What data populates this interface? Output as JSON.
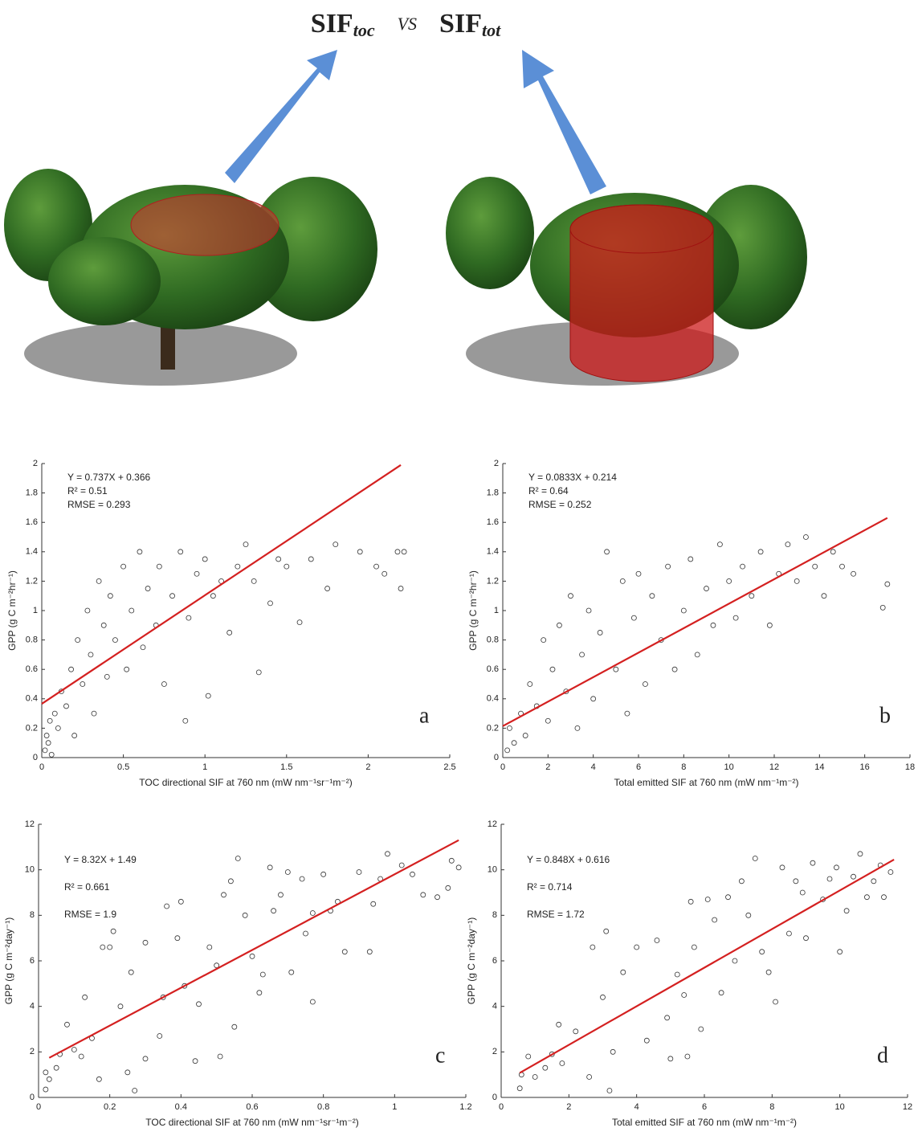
{
  "illustration": {
    "title": {
      "left": "SIF",
      "left_sub": "toc",
      "mid": "VS",
      "right": "SIF",
      "right_sub": "tot"
    }
  },
  "chart_data": [
    {
      "type": "scatter",
      "panel_label": "a",
      "x_label": "TOC directional SIF at 760 nm (mW nm⁻¹sr⁻¹m⁻²)",
      "y_label": "GPP (g C m⁻²hr⁻¹)",
      "annotations": [
        "Y = 0.737X + 0.366",
        "R² = 0.51",
        "RMSE = 0.293"
      ],
      "xlim": [
        0,
        2.5
      ],
      "xticks": [
        0,
        0.5,
        1,
        1.5,
        2,
        2.5
      ],
      "ylim": [
        0,
        2
      ],
      "yticks": [
        0,
        0.2,
        0.4,
        0.6,
        0.8,
        1,
        1.2,
        1.4,
        1.6,
        1.8,
        2
      ],
      "color": "#333333",
      "fit": {
        "color": "#d42020",
        "x": [
          0,
          2.2
        ],
        "y": [
          0.366,
          1.99
        ]
      },
      "x": [
        0.02,
        0.03,
        0.05,
        0.04,
        0.08,
        0.06,
        0.1,
        0.12,
        0.15,
        0.18,
        0.2,
        0.22,
        0.25,
        0.28,
        0.3,
        0.32,
        0.35,
        0.38,
        0.4,
        0.42,
        0.45,
        0.5,
        0.52,
        0.55,
        0.6,
        0.62,
        0.65,
        0.7,
        0.72,
        0.75,
        0.8,
        0.85,
        0.88,
        0.9,
        0.95,
        1.0,
        1.02,
        1.05,
        1.1,
        1.15,
        1.2,
        1.25,
        1.3,
        1.33,
        1.4,
        1.45,
        1.5,
        1.58,
        1.65,
        1.75,
        1.8,
        1.95,
        2.05,
        2.1,
        2.18,
        2.2,
        2.22
      ],
      "y": [
        0.05,
        0.15,
        0.25,
        0.1,
        0.3,
        0.02,
        0.2,
        0.45,
        0.35,
        0.6,
        0.15,
        0.8,
        0.5,
        1.0,
        0.7,
        0.3,
        1.2,
        0.9,
        0.55,
        1.1,
        0.8,
        1.3,
        0.6,
        1.0,
        1.4,
        0.75,
        1.15,
        0.9,
        1.3,
        0.5,
        1.1,
        1.4,
        0.25,
        0.95,
        1.25,
        1.35,
        0.42,
        1.1,
        1.2,
        0.85,
        1.3,
        1.45,
        1.2,
        0.58,
        1.05,
        1.35,
        1.3,
        0.92,
        1.35,
        1.15,
        1.45,
        1.4,
        1.3,
        1.25,
        1.4,
        1.15,
        1.4
      ]
    },
    {
      "type": "scatter",
      "panel_label": "b",
      "x_label": "Total emitted SIF at 760 nm (mW nm⁻¹m⁻²)",
      "y_label": "GPP (g C m⁻²hr⁻¹)",
      "annotations": [
        "Y = 0.0833X + 0.214",
        "R² = 0.64",
        "RMSE = 0.252"
      ],
      "xlim": [
        0,
        18
      ],
      "xticks": [
        0,
        2,
        4,
        6,
        8,
        10,
        12,
        14,
        16,
        18
      ],
      "ylim": [
        0,
        2
      ],
      "yticks": [
        0,
        0.2,
        0.4,
        0.6,
        0.8,
        1,
        1.2,
        1.4,
        1.6,
        1.8,
        2
      ],
      "color": "#333333",
      "fit": {
        "color": "#d42020",
        "x": [
          0,
          17
        ],
        "y": [
          0.214,
          1.63
        ]
      },
      "x": [
        0.2,
        0.3,
        0.5,
        0.8,
        1,
        1.2,
        1.5,
        1.8,
        2,
        2.2,
        2.5,
        2.8,
        3,
        3.3,
        3.5,
        3.8,
        4,
        4.3,
        4.6,
        5,
        5.3,
        5.5,
        5.8,
        6,
        6.3,
        6.6,
        7,
        7.3,
        7.6,
        8,
        8.3,
        8.6,
        9,
        9.3,
        9.6,
        10,
        10.3,
        10.6,
        11,
        11.4,
        11.8,
        12.2,
        12.6,
        13,
        13.4,
        13.8,
        14.2,
        14.6,
        15,
        15.5,
        16.8,
        17
      ],
      "y": [
        0.05,
        0.2,
        0.1,
        0.3,
        0.15,
        0.5,
        0.35,
        0.8,
        0.25,
        0.6,
        0.9,
        0.45,
        1.1,
        0.2,
        0.7,
        1.0,
        0.4,
        0.85,
        1.4,
        0.6,
        1.2,
        0.3,
        0.95,
        1.25,
        0.5,
        1.1,
        0.8,
        1.3,
        0.6,
        1.0,
        1.35,
        0.7,
        1.15,
        0.9,
        1.45,
        1.2,
        0.95,
        1.3,
        1.1,
        1.4,
        0.9,
        1.25,
        1.45,
        1.2,
        1.5,
        1.3,
        1.1,
        1.4,
        1.3,
        1.25,
        1.02,
        1.18
      ]
    },
    {
      "type": "scatter",
      "panel_label": "c",
      "x_label": "TOC directional SIF at 760 nm (mW nm⁻¹sr⁻¹m⁻²)",
      "y_label": "GPP (g C m⁻²day⁻¹)",
      "annotations": [
        "Y = 8.32X + 1.49",
        "R² = 0.661",
        "RMSE = 1.9"
      ],
      "xlim": [
        0,
        1.2
      ],
      "xticks": [
        0,
        0.2,
        0.4,
        0.6,
        0.8,
        1,
        1.2
      ],
      "ylim": [
        0,
        12
      ],
      "yticks": [
        0,
        2,
        4,
        6,
        8,
        10,
        12
      ],
      "color": "#333333",
      "fit": {
        "color": "#d42020",
        "x": [
          0.03,
          1.18
        ],
        "y": [
          1.74,
          11.3
        ]
      },
      "x": [
        0.02,
        0.02,
        0.03,
        0.05,
        0.06,
        0.08,
        0.1,
        0.12,
        0.13,
        0.15,
        0.17,
        0.18,
        0.2,
        0.21,
        0.23,
        0.25,
        0.26,
        0.27,
        0.3,
        0.3,
        0.34,
        0.35,
        0.36,
        0.39,
        0.4,
        0.41,
        0.44,
        0.45,
        0.48,
        0.5,
        0.51,
        0.52,
        0.54,
        0.55,
        0.56,
        0.58,
        0.6,
        0.62,
        0.63,
        0.65,
        0.66,
        0.68,
        0.7,
        0.71,
        0.74,
        0.75,
        0.77,
        0.77,
        0.8,
        0.82,
        0.84,
        0.86,
        0.9,
        0.93,
        0.94,
        0.96,
        0.98,
        1.02,
        1.05,
        1.08,
        1.12,
        1.15,
        1.16,
        1.18
      ],
      "y": [
        0.35,
        1.1,
        0.8,
        1.3,
        1.9,
        3.2,
        2.1,
        1.8,
        4.4,
        2.6,
        0.8,
        6.6,
        6.6,
        7.3,
        4.0,
        1.1,
        5.5,
        0.3,
        6.8,
        1.7,
        2.7,
        4.4,
        8.4,
        7.0,
        8.6,
        4.9,
        1.6,
        4.1,
        6.6,
        5.8,
        1.8,
        8.9,
        9.5,
        3.1,
        10.5,
        8.0,
        6.2,
        4.6,
        5.4,
        10.1,
        8.2,
        8.9,
        9.9,
        5.5,
        9.6,
        7.2,
        8.1,
        4.2,
        9.8,
        8.2,
        8.6,
        6.4,
        9.9,
        6.4,
        8.5,
        9.6,
        10.7,
        10.2,
        9.8,
        8.9,
        8.8,
        9.2,
        10.4,
        10.1
      ]
    },
    {
      "type": "scatter",
      "panel_label": "d",
      "x_label": "Total emitted SIF at 760 nm (mW nm⁻¹m⁻²)",
      "y_label": "GPP (g C m⁻²day⁻¹)",
      "annotations": [
        "Y = 0.848X + 0.616",
        "R² = 0.714",
        "RMSE = 1.72"
      ],
      "xlim": [
        0,
        12
      ],
      "xticks": [
        0,
        2,
        4,
        6,
        8,
        10,
        12
      ],
      "ylim": [
        0,
        12
      ],
      "yticks": [
        0,
        2,
        4,
        6,
        8,
        10,
        12
      ],
      "color": "#333333",
      "fit": {
        "color": "#d42020",
        "x": [
          0.55,
          11.6
        ],
        "y": [
          1.08,
          10.45
        ]
      },
      "x": [
        0.55,
        0.6,
        0.8,
        1.0,
        1.3,
        1.5,
        1.7,
        1.8,
        2.2,
        2.6,
        2.7,
        3.0,
        3.1,
        3.2,
        3.3,
        3.6,
        4.0,
        4.3,
        4.6,
        4.9,
        5.0,
        5.2,
        5.4,
        5.5,
        5.6,
        5.7,
        5.9,
        6.1,
        6.3,
        6.5,
        6.7,
        6.9,
        7.1,
        7.3,
        7.5,
        7.7,
        7.9,
        8.1,
        8.3,
        8.5,
        8.7,
        8.9,
        9.0,
        9.2,
        9.5,
        9.7,
        9.9,
        10.0,
        10.2,
        10.4,
        10.6,
        10.8,
        11.0,
        11.2,
        11.3,
        11.5
      ],
      "y": [
        0.4,
        1.0,
        1.8,
        0.9,
        1.3,
        1.9,
        3.2,
        1.5,
        2.9,
        0.9,
        6.6,
        4.4,
        7.3,
        0.3,
        2.0,
        5.5,
        6.6,
        2.5,
        6.9,
        3.5,
        1.7,
        5.4,
        4.5,
        1.8,
        8.6,
        6.6,
        3.0,
        8.7,
        7.8,
        4.6,
        8.8,
        6.0,
        9.5,
        8.0,
        10.5,
        6.4,
        5.5,
        4.2,
        10.1,
        7.2,
        9.5,
        9.0,
        7.0,
        10.3,
        8.7,
        9.6,
        10.1,
        6.4,
        8.2,
        9.7,
        10.7,
        8.8,
        9.5,
        10.2,
        8.8,
        9.9
      ]
    }
  ]
}
